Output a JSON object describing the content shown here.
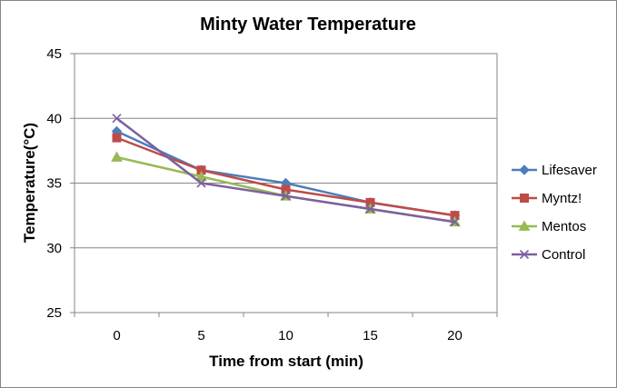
{
  "chart_data": {
    "type": "line",
    "title": "Minty Water Temperature",
    "xlabel": "Time from start  (min)",
    "ylabel": "Temperature(°C)",
    "categories": [
      "0",
      "5",
      "10",
      "15",
      "20"
    ],
    "ylim": [
      25,
      45
    ],
    "yticks": [
      "25",
      "30",
      "35",
      "40",
      "45"
    ],
    "grid": "horizontal",
    "legend_position": "right",
    "series": [
      {
        "name": "Lifesaver",
        "values": [
          39,
          36,
          35,
          33.5,
          32.5
        ],
        "color": "#4A7EBB",
        "marker": "diamond"
      },
      {
        "name": "Myntz!",
        "values": [
          38.5,
          36,
          34.5,
          33.5,
          32.5
        ],
        "color": "#BE4B48",
        "marker": "square"
      },
      {
        "name": "Mentos",
        "values": [
          37,
          35.5,
          34,
          33,
          32
        ],
        "color": "#98B954",
        "marker": "triangle"
      },
      {
        "name": "Control",
        "values": [
          40,
          35,
          34,
          33,
          32
        ],
        "color": "#7D60A0",
        "marker": "x"
      }
    ]
  }
}
